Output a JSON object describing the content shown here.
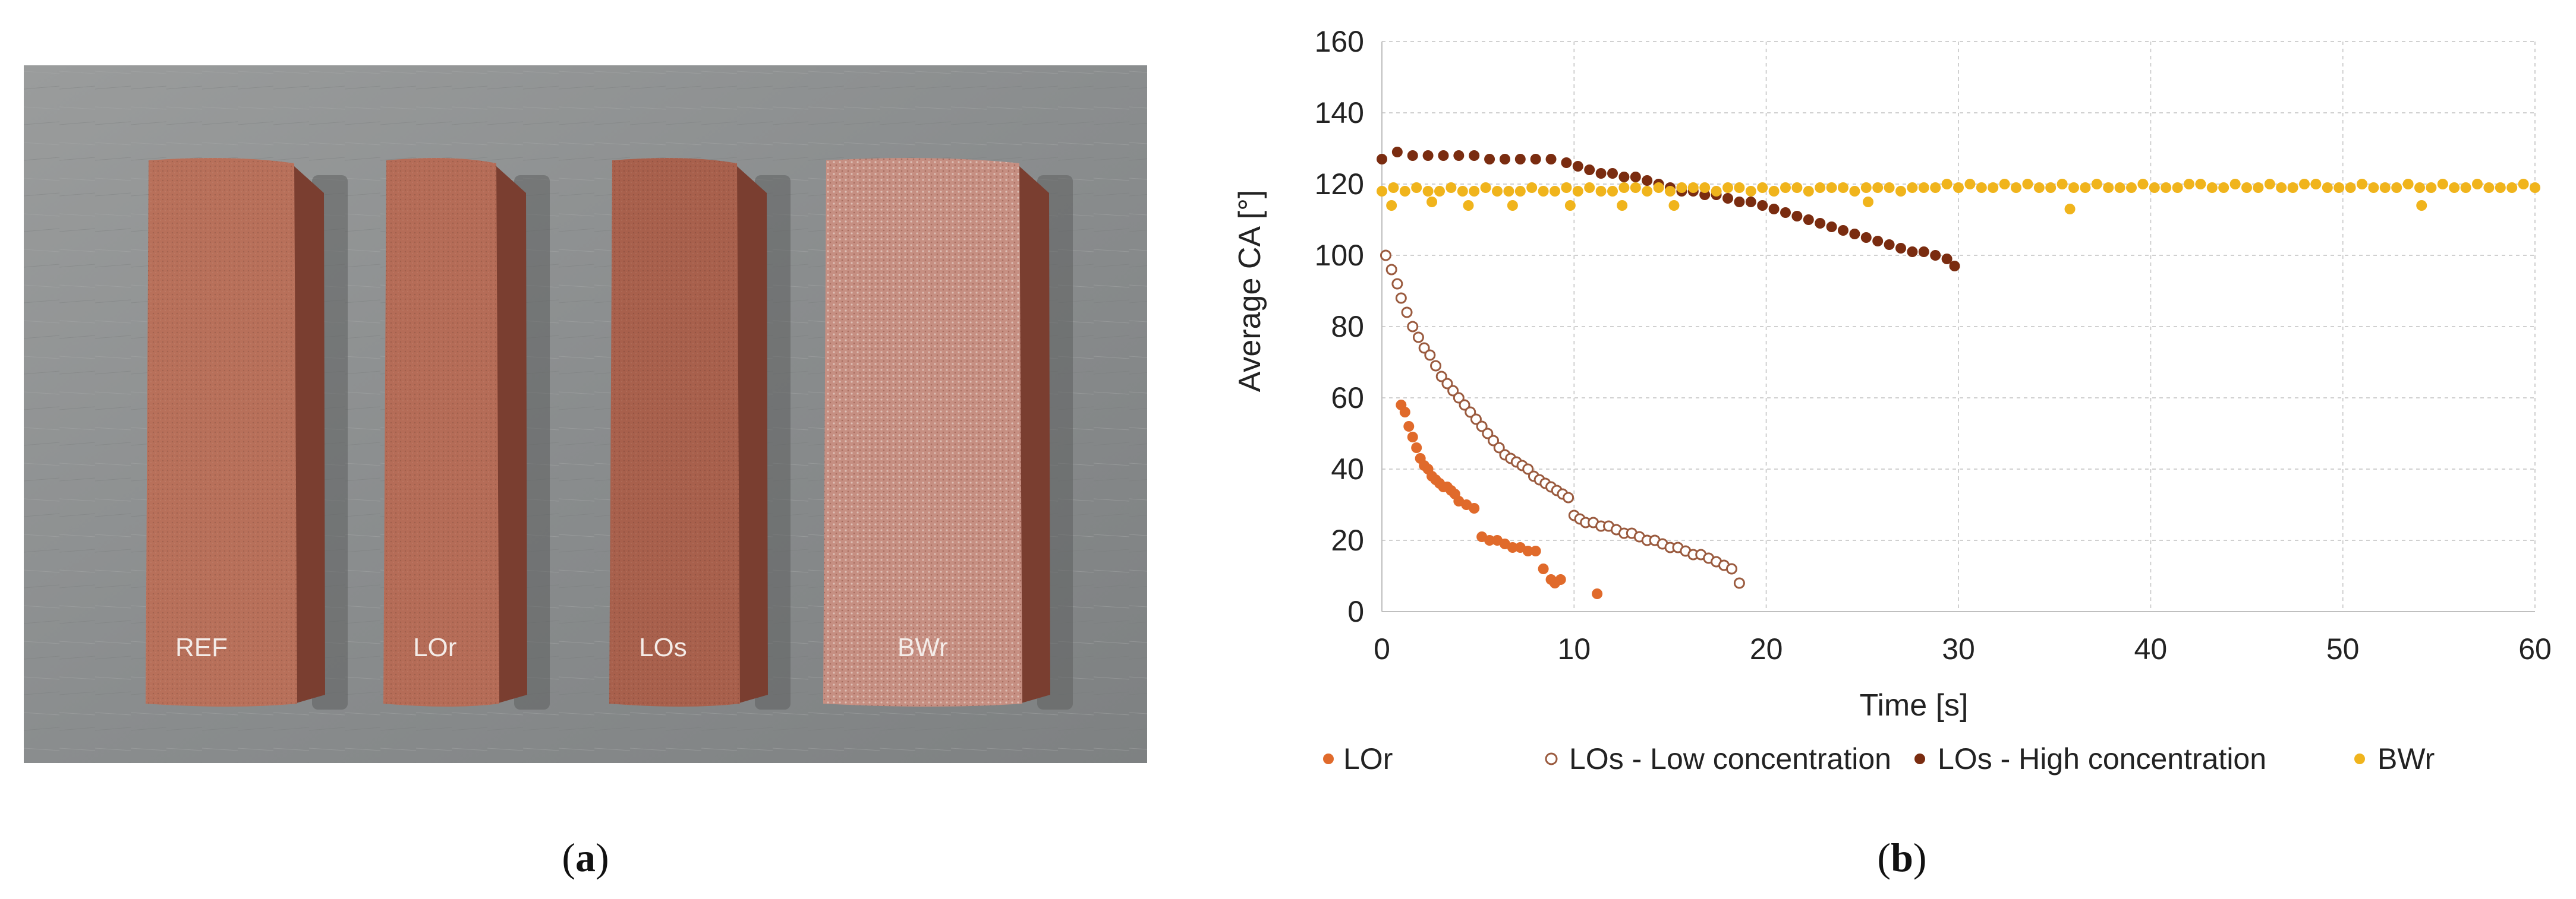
{
  "photo": {
    "samples": [
      {
        "label": "REF",
        "color": "#b8705a"
      },
      {
        "label": "LOr",
        "color": "#b56c57"
      },
      {
        "label": "LOs",
        "color": "#a8604c"
      },
      {
        "label": "BWr",
        "color": "#c68f82"
      }
    ],
    "background_color": "#8f9293"
  },
  "captions": {
    "a": "a",
    "b": "b"
  },
  "chart_data": {
    "type": "scatter",
    "title": "",
    "xlabel": "Time [s]",
    "ylabel": "Average CA [°]",
    "xlim": [
      0,
      60
    ],
    "ylim": [
      0,
      160
    ],
    "xticks": [
      0,
      10,
      20,
      30,
      40,
      50,
      60
    ],
    "yticks": [
      0,
      20,
      40,
      60,
      80,
      100,
      120,
      140,
      160
    ],
    "grid": true,
    "legend_position": "bottom",
    "series": [
      {
        "name": "LOr",
        "color": "#e06a2b",
        "marker": "filled",
        "x": [
          1.0,
          1.2,
          1.4,
          1.6,
          1.8,
          2.0,
          2.2,
          2.4,
          2.6,
          2.8,
          3.0,
          3.2,
          3.4,
          3.6,
          3.8,
          4.0,
          4.4,
          4.8,
          5.2,
          5.6,
          6.0,
          6.4,
          6.8,
          7.2,
          7.6,
          8.0,
          8.4,
          8.8,
          9.0,
          9.3,
          11.2
        ],
        "y": [
          58,
          56,
          52,
          49,
          46,
          43,
          41,
          40,
          38,
          37,
          36,
          35,
          35,
          34,
          33,
          31,
          30,
          29,
          21,
          20,
          20,
          19,
          18,
          18,
          17,
          17,
          12,
          9,
          8,
          9,
          5
        ]
      },
      {
        "name": "LOs - Low concentration",
        "color": "#9a5a3e",
        "marker": "open",
        "x": [
          0.2,
          0.5,
          0.8,
          1.0,
          1.3,
          1.6,
          1.9,
          2.2,
          2.5,
          2.8,
          3.1,
          3.4,
          3.7,
          4.0,
          4.3,
          4.6,
          4.9,
          5.2,
          5.5,
          5.8,
          6.1,
          6.4,
          6.7,
          7.0,
          7.3,
          7.6,
          7.9,
          8.2,
          8.5,
          8.8,
          9.1,
          9.4,
          9.7,
          10.0,
          10.3,
          10.6,
          11.0,
          11.4,
          11.8,
          12.2,
          12.6,
          13.0,
          13.4,
          13.8,
          14.2,
          14.6,
          15.0,
          15.4,
          15.8,
          16.2,
          16.6,
          17.0,
          17.4,
          17.8,
          18.2,
          18.6
        ],
        "y": [
          100,
          96,
          92,
          88,
          84,
          80,
          77,
          74,
          72,
          69,
          66,
          64,
          62,
          60,
          58,
          56,
          54,
          52,
          50,
          48,
          46,
          44,
          43,
          42,
          41,
          40,
          38,
          37,
          36,
          35,
          34,
          33,
          32,
          27,
          26,
          25,
          25,
          24,
          24,
          23,
          22,
          22,
          21,
          20,
          20,
          19,
          18,
          18,
          17,
          16,
          16,
          15,
          14,
          13,
          12,
          8
        ]
      },
      {
        "name": "LOs - High concentration",
        "color": "#7a2c10",
        "marker": "filled",
        "x": [
          0.0,
          0.8,
          1.6,
          2.4,
          3.2,
          4.0,
          4.8,
          5.6,
          6.4,
          7.2,
          8.0,
          8.8,
          9.6,
          10.2,
          10.8,
          11.4,
          12.0,
          12.6,
          13.2,
          13.8,
          14.4,
          15.0,
          15.6,
          16.2,
          16.8,
          17.4,
          18.0,
          18.6,
          19.2,
          19.8,
          20.4,
          21.0,
          21.6,
          22.2,
          22.8,
          23.4,
          24.0,
          24.6,
          25.2,
          25.8,
          26.4,
          27.0,
          27.6,
          28.2,
          28.8,
          29.4,
          29.8
        ],
        "y": [
          127,
          129,
          128,
          128,
          128,
          128,
          128,
          127,
          127,
          127,
          127,
          127,
          126,
          125,
          124,
          123,
          123,
          122,
          122,
          121,
          120,
          119,
          118,
          118,
          117,
          117,
          116,
          115,
          115,
          114,
          113,
          112,
          111,
          110,
          109,
          108,
          107,
          106,
          105,
          104,
          103,
          102,
          101,
          101,
          100,
          99,
          97
        ]
      },
      {
        "name": "BWr",
        "color": "#f0b41c",
        "marker": "filled",
        "x": [
          0.0,
          0.6,
          1.2,
          1.8,
          2.4,
          3.0,
          3.6,
          4.2,
          4.8,
          5.4,
          6.0,
          6.6,
          7.2,
          7.8,
          8.4,
          9.0,
          9.6,
          10.2,
          10.8,
          11.4,
          12.0,
          12.6,
          13.2,
          13.8,
          14.4,
          15.0,
          15.6,
          16.2,
          16.8,
          17.4,
          18.0,
          18.6,
          19.2,
          19.8,
          20.4,
          21.0,
          21.6,
          22.2,
          22.8,
          23.4,
          24.0,
          24.6,
          25.2,
          25.8,
          26.4,
          27.0,
          27.6,
          28.2,
          28.8,
          29.4,
          30.0,
          30.6,
          31.2,
          31.8,
          32.4,
          33.0,
          33.6,
          34.2,
          34.8,
          35.4,
          36.0,
          36.6,
          37.2,
          37.8,
          38.4,
          39.0,
          39.6,
          40.2,
          40.8,
          41.4,
          42.0,
          42.6,
          43.2,
          43.8,
          44.4,
          45.0,
          45.6,
          46.2,
          46.8,
          47.4,
          48.0,
          48.6,
          49.2,
          49.8,
          50.4,
          51.0,
          51.6,
          52.2,
          52.8,
          53.4,
          54.0,
          54.6,
          55.2,
          55.8,
          56.4,
          57.0,
          57.6,
          58.2,
          58.8,
          59.4,
          60.0,
          0.5,
          2.6,
          4.5,
          6.8,
          9.8,
          12.5,
          15.2,
          25.3,
          35.8,
          54.1
        ],
        "y": [
          118,
          119,
          118,
          119,
          118,
          118,
          119,
          118,
          118,
          119,
          118,
          118,
          118,
          119,
          118,
          118,
          119,
          118,
          119,
          118,
          118,
          119,
          119,
          118,
          119,
          118,
          119,
          119,
          119,
          118,
          119,
          119,
          118,
          119,
          118,
          119,
          119,
          118,
          119,
          119,
          119,
          118,
          119,
          119,
          119,
          118,
          119,
          119,
          119,
          120,
          119,
          120,
          119,
          119,
          120,
          119,
          120,
          119,
          119,
          120,
          119,
          119,
          120,
          119,
          119,
          119,
          120,
          119,
          119,
          119,
          120,
          120,
          119,
          119,
          120,
          119,
          119,
          120,
          119,
          119,
          120,
          120,
          119,
          119,
          119,
          120,
          119,
          119,
          119,
          120,
          119,
          119,
          120,
          119,
          119,
          120,
          119,
          119,
          119,
          120,
          119,
          114,
          115,
          114,
          114,
          114,
          114,
          114,
          115,
          113,
          114
        ]
      }
    ]
  }
}
